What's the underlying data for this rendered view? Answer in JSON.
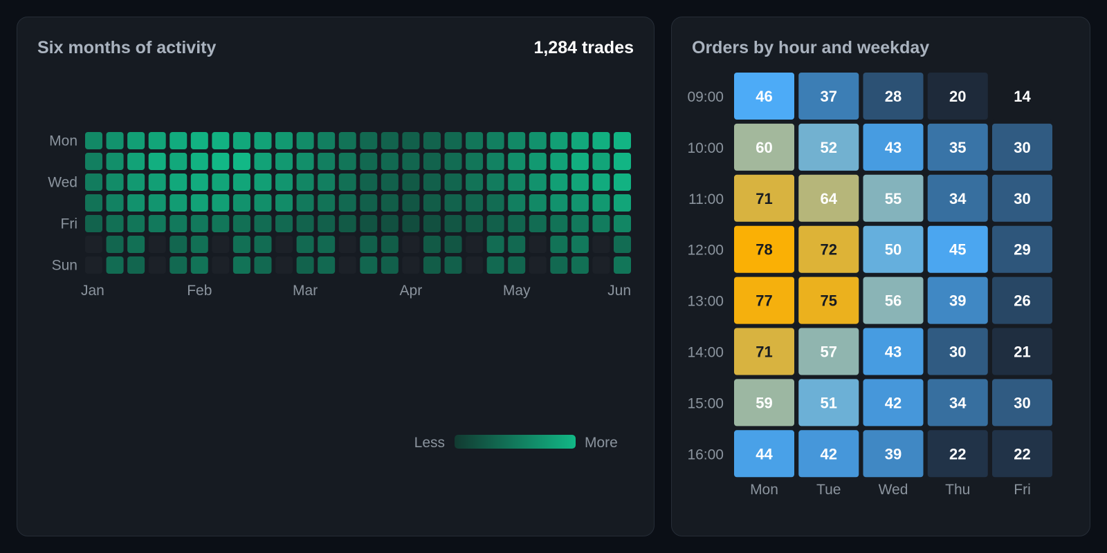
{
  "activity": {
    "title": "Six months of activity",
    "total": "1,284 trades",
    "legend": {
      "less": "Less",
      "more": "More"
    },
    "colors": {
      "empty": "#1c2128",
      "low": "#123a31",
      "high": "#12b886"
    },
    "chart_data": {
      "type": "heatmap",
      "row_labels": [
        "Mon",
        "",
        "Wed",
        "",
        "Fri",
        "",
        "Sun"
      ],
      "x_labels": [
        {
          "label": "Jan",
          "week": 0
        },
        {
          "label": "Feb",
          "week": 5
        },
        {
          "label": "Mar",
          "week": 10
        },
        {
          "label": "Apr",
          "week": 15
        },
        {
          "label": "May",
          "week": 20
        },
        {
          "label": "Jun",
          "week": 25
        }
      ],
      "scale": [
        0,
        4
      ],
      "weeks": 26,
      "values": [
        [
          2.5,
          2.8,
          3.2,
          3.4,
          3.6,
          3.8,
          3.8,
          3.5,
          3.3,
          3.0,
          2.6,
          2.2,
          1.8,
          1.5,
          1.3,
          1.2,
          1.3,
          1.5,
          1.9,
          2.2,
          2.5,
          2.8,
          3.2,
          3.5,
          3.7,
          3.9
        ],
        [
          2.2,
          2.7,
          3.3,
          3.7,
          3.5,
          3.8,
          4.0,
          4.0,
          3.3,
          3.0,
          2.7,
          2.2,
          1.9,
          1.5,
          1.5,
          1.4,
          1.3,
          1.6,
          1.9,
          2.3,
          2.7,
          3.0,
          3.3,
          3.7,
          3.4,
          3.9
        ],
        [
          2.1,
          2.6,
          3.0,
          3.2,
          3.5,
          3.6,
          3.4,
          3.4,
          3.2,
          2.9,
          2.4,
          2.2,
          1.7,
          1.3,
          1.2,
          1.0,
          1.2,
          1.4,
          1.8,
          2.1,
          2.4,
          2.8,
          3.2,
          3.4,
          3.6,
          3.8
        ],
        [
          1.8,
          2.3,
          2.8,
          2.9,
          3.1,
          3.3,
          3.2,
          2.8,
          2.7,
          2.6,
          2.0,
          1.8,
          1.5,
          1.2,
          1.1,
          0.9,
          1.1,
          1.3,
          1.4,
          1.6,
          2.2,
          2.5,
          2.8,
          2.9,
          3.0,
          3.4
        ],
        [
          1.3,
          1.7,
          1.9,
          2.0,
          2.0,
          2.0,
          1.9,
          1.7,
          1.6,
          1.5,
          1.3,
          1.2,
          1.0,
          0.8,
          0.7,
          0.6,
          0.7,
          0.9,
          1.0,
          1.2,
          1.4,
          1.6,
          1.8,
          2.0,
          2.1,
          2.4
        ],
        [
          0.0,
          1.4,
          1.7,
          0.0,
          1.4,
          1.7,
          0.0,
          1.7,
          1.6,
          0.0,
          1.5,
          1.5,
          0.0,
          1.2,
          1.1,
          0.0,
          1.0,
          0.9,
          0.0,
          1.6,
          1.5,
          0.0,
          1.8,
          2.0,
          0.0,
          1.6
        ],
        [
          0.0,
          1.6,
          1.4,
          0.0,
          1.5,
          1.8,
          0.0,
          1.8,
          1.5,
          0.0,
          1.3,
          1.5,
          0.0,
          1.4,
          1.2,
          0.0,
          1.1,
          1.2,
          0.0,
          1.5,
          1.4,
          0.0,
          1.5,
          1.7,
          0.0,
          1.9
        ]
      ]
    }
  },
  "orders": {
    "title": "Orders by hour and weekday",
    "colors": {
      "low": "#1e2b3c",
      "blue": "#4dabf7",
      "mid": "#a3b89b",
      "high": "#fab005",
      "label_light": "#ffffff",
      "label_dark": "#161b22"
    },
    "chart_data": {
      "type": "heatmap",
      "title": "Orders by hour and weekday",
      "x": [
        "Mon",
        "Tue",
        "Wed",
        "Thu",
        "Fri"
      ],
      "y": [
        "09:00",
        "10:00",
        "11:00",
        "12:00",
        "13:00",
        "14:00",
        "15:00",
        "16:00"
      ],
      "values": [
        [
          46,
          37,
          28,
          20,
          14
        ],
        [
          60,
          52,
          43,
          35,
          30
        ],
        [
          71,
          64,
          55,
          34,
          30
        ],
        [
          78,
          72,
          50,
          45,
          29
        ],
        [
          77,
          75,
          56,
          39,
          26
        ],
        [
          71,
          57,
          43,
          30,
          21
        ],
        [
          59,
          51,
          42,
          34,
          30
        ],
        [
          44,
          42,
          39,
          22,
          22
        ]
      ]
    }
  }
}
